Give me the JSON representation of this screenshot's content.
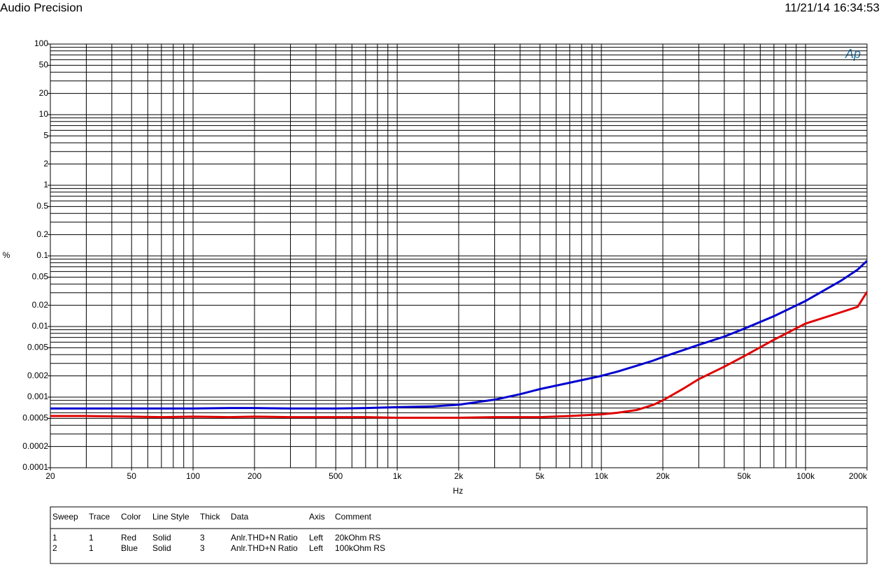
{
  "chart_data": {
    "type": "line",
    "title": "Audio Precision",
    "timestamp": "11/21/14 16:34:53",
    "logo": "Ap",
    "xlabel": "Hz",
    "ylabel": "%",
    "xscale": "log",
    "yscale": "log",
    "grid": true,
    "xlim": [
      20,
      200000
    ],
    "ylim": [
      0.0001,
      100
    ],
    "xticks": [
      20,
      50,
      100,
      200,
      500,
      {
        "value": 1000,
        "label": "1k"
      },
      {
        "value": 2000,
        "label": "2k"
      },
      {
        "value": 5000,
        "label": "5k"
      },
      {
        "value": 10000,
        "label": "10k"
      },
      {
        "value": 20000,
        "label": "20k"
      },
      {
        "value": 50000,
        "label": "50k"
      },
      {
        "value": 100000,
        "label": "100k"
      },
      {
        "value": 200000,
        "label": "200k"
      }
    ],
    "yticks": [
      100,
      50,
      20,
      10,
      5,
      2,
      1,
      0.5,
      0.2,
      0.1,
      0.05,
      0.02,
      0.01,
      0.005,
      0.002,
      0.001,
      0.0005,
      0.0002,
      0.0001
    ],
    "xgrid": [
      20,
      30,
      40,
      50,
      60,
      70,
      80,
      90,
      100,
      200,
      300,
      400,
      500,
      600,
      700,
      800,
      900,
      1000,
      2000,
      3000,
      4000,
      5000,
      6000,
      7000,
      8000,
      9000,
      10000,
      20000,
      30000,
      40000,
      50000,
      60000,
      70000,
      80000,
      90000,
      100000,
      200000
    ],
    "ygrid": [
      0.0001,
      0.0002,
      0.0003,
      0.0004,
      0.0005,
      0.0006,
      0.0007,
      0.0008,
      0.0009,
      0.001,
      0.002,
      0.003,
      0.004,
      0.005,
      0.006,
      0.007,
      0.008,
      0.009,
      0.01,
      0.02,
      0.03,
      0.04,
      0.05,
      0.06,
      0.07,
      0.08,
      0.09,
      0.1,
      0.2,
      0.3,
      0.4,
      0.5,
      0.6,
      0.7,
      0.8,
      0.9,
      1,
      2,
      3,
      4,
      5,
      6,
      7,
      8,
      9,
      10,
      20,
      30,
      40,
      50,
      60,
      70,
      80,
      90,
      100
    ],
    "x": [
      20,
      30,
      50,
      70,
      100,
      150,
      200,
      300,
      500,
      700,
      1000,
      1500,
      2000,
      3000,
      4000,
      5000,
      7000,
      10000,
      12000,
      15000,
      18000,
      20000,
      25000,
      30000,
      40000,
      50000,
      70000,
      100000,
      150000,
      180000,
      200000
    ],
    "series": [
      {
        "name": "20kOhm RS",
        "color": "#e00000",
        "values": [
          0.00054,
          0.00054,
          0.00053,
          0.00052,
          0.00053,
          0.00052,
          0.00053,
          0.00052,
          0.00052,
          0.00052,
          0.00051,
          0.00051,
          0.00051,
          0.00052,
          0.00052,
          0.00052,
          0.00054,
          0.00057,
          0.0006,
          0.00066,
          0.00078,
          0.0009,
          0.0013,
          0.0018,
          0.0027,
          0.0038,
          0.0065,
          0.011,
          0.016,
          0.019,
          0.031
        ]
      },
      {
        "name": "100kOhm RS",
        "color": "#0000d0",
        "values": [
          0.00069,
          0.00069,
          0.00069,
          0.00069,
          0.00069,
          0.0007,
          0.0007,
          0.00069,
          0.00069,
          0.0007,
          0.00072,
          0.00074,
          0.00078,
          0.00092,
          0.0011,
          0.0013,
          0.0016,
          0.002,
          0.0023,
          0.0028,
          0.0033,
          0.0037,
          0.0046,
          0.0055,
          0.0072,
          0.0093,
          0.014,
          0.023,
          0.045,
          0.064,
          0.085
        ]
      }
    ]
  },
  "sweep_table": {
    "headers": [
      "Sweep",
      "Trace",
      "Color",
      "Line Style",
      "Thick",
      "Data",
      "Axis",
      "Comment"
    ],
    "rows": [
      [
        "1",
        "1",
        "Red",
        "Solid",
        "3",
        "Anlr.THD+N Ratio",
        "Left",
        "20kOhm RS"
      ],
      [
        "2",
        "1",
        "Blue",
        "Solid",
        "3",
        "Anlr.THD+N Ratio",
        "Left",
        "100kOhm RS"
      ]
    ]
  }
}
